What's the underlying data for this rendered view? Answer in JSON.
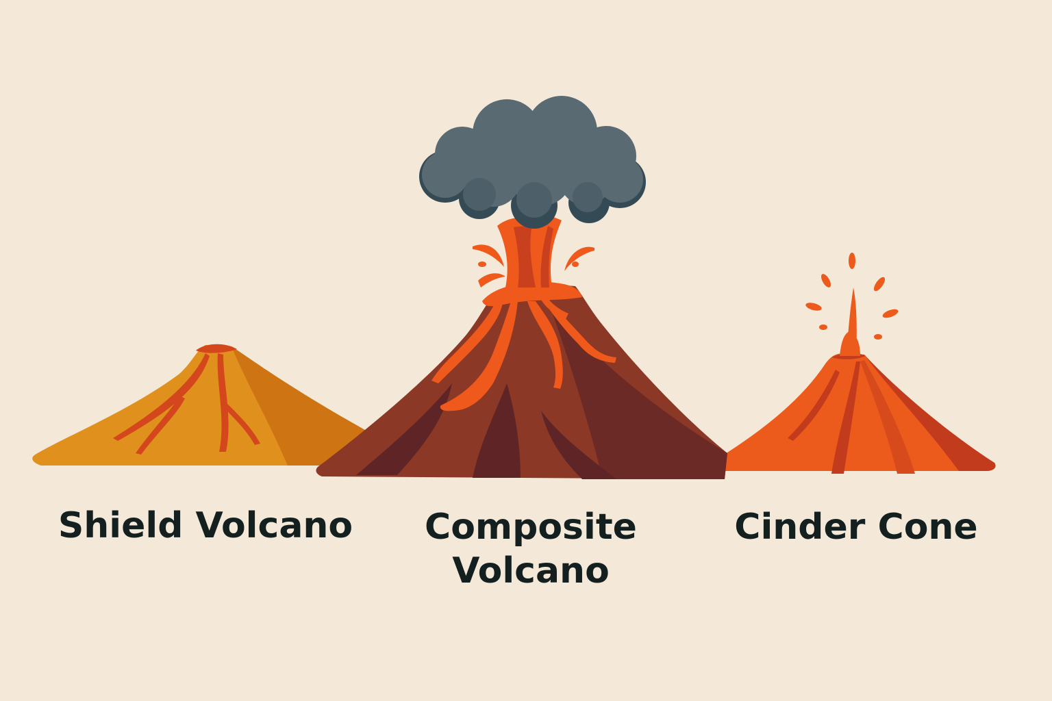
{
  "labels": {
    "shield": "Shield Volcano",
    "composite_line1": "Composite",
    "composite_line2": "Volcano",
    "cinder": "Cinder Cone"
  },
  "colors": {
    "background": "#f4e8d9",
    "shield_body": "#e0901c",
    "shield_shade": "#cf7413",
    "shield_lava": "#d4471c",
    "composite_body": "#8b3826",
    "composite_shade": "#5f2526",
    "composite_lava": "#ef5a1c",
    "ash_cloud": "#5a6a72",
    "ash_cloud_dark": "#344a55",
    "cinder_body": "#ec5a1c",
    "cinder_shade": "#c33b1d",
    "text": "#14201f"
  }
}
